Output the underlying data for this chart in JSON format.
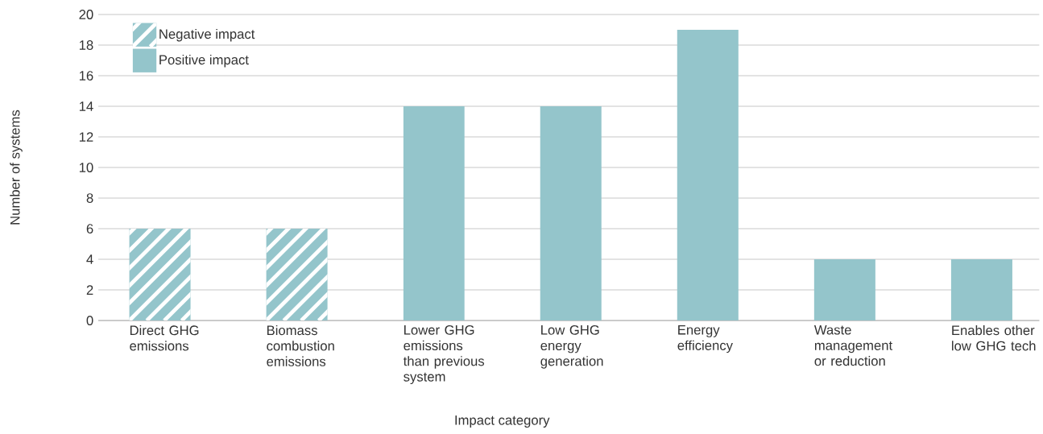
{
  "chart_data": {
    "type": "bar",
    "xlabel": "Impact category",
    "ylabel": "Number of systems",
    "categories": [
      "Direct GHG emissions",
      "Biomass combustion emissions",
      "Lower GHG emissions than previous system",
      "Low GHG energy generation",
      "Energy efficiency",
      "Waste management or reduction",
      "Enables other low GHG tech"
    ],
    "series": [
      {
        "name": "Negative impact",
        "color": "#94c5cb",
        "values": [
          6,
          6,
          null,
          null,
          null,
          null,
          null
        ]
      },
      {
        "name": "Positive impact",
        "color": "#94c5cb",
        "values": [
          null,
          null,
          14,
          14,
          19,
          4,
          4
        ]
      }
    ],
    "stacked": true,
    "ylim": [
      0,
      20
    ],
    "yticks": [
      0,
      2,
      4,
      6,
      8,
      10,
      12,
      14,
      16,
      18,
      20
    ],
    "grid": "y",
    "legend": "top left"
  }
}
